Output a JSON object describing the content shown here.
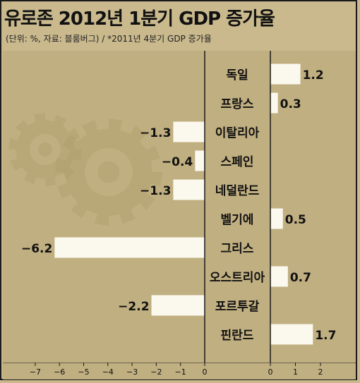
{
  "title": "유로존 2012년 1분기 GDP 증가율",
  "subtitle": "(단위: %, 자료: 블룸버그) / *2011년 4분기 GDP 증가율",
  "colors": {
    "background": "#c9b98d",
    "panel": "#c0af80",
    "bar": "#fbf8ee",
    "axis": "#1a1a1a",
    "gear": "#b0a070"
  },
  "chart_data": {
    "type": "bar",
    "orientation": "horizontal",
    "categories": [
      "독일",
      "프랑스",
      "이탈리아",
      "스페인",
      "네덜란드",
      "벨기에",
      "그리스",
      "오스트리아",
      "포르투갈",
      "핀란드"
    ],
    "values": [
      1.2,
      0.3,
      -1.3,
      -0.4,
      -1.3,
      0.5,
      -6.2,
      0.7,
      -2.2,
      1.7
    ],
    "value_labels": [
      "1.2",
      "0.3",
      "−1.3",
      "−0.4",
      "−1.3",
      "0.5",
      "−6.2",
      "0.7",
      "−2.2",
      "1.7"
    ],
    "negative_axis": {
      "ticks": [
        -7,
        -6,
        -5,
        -4,
        -3,
        -2,
        -1,
        0
      ],
      "tick_labels": [
        "−7",
        "−6",
        "−5",
        "−4",
        "−3",
        "−2",
        "−1",
        "0"
      ],
      "range": [
        -7,
        0
      ]
    },
    "positive_axis": {
      "ticks": [
        0,
        1,
        2
      ],
      "tick_labels": [
        "0",
        "1",
        "2"
      ],
      "range": [
        0,
        2
      ]
    },
    "grid": false
  }
}
